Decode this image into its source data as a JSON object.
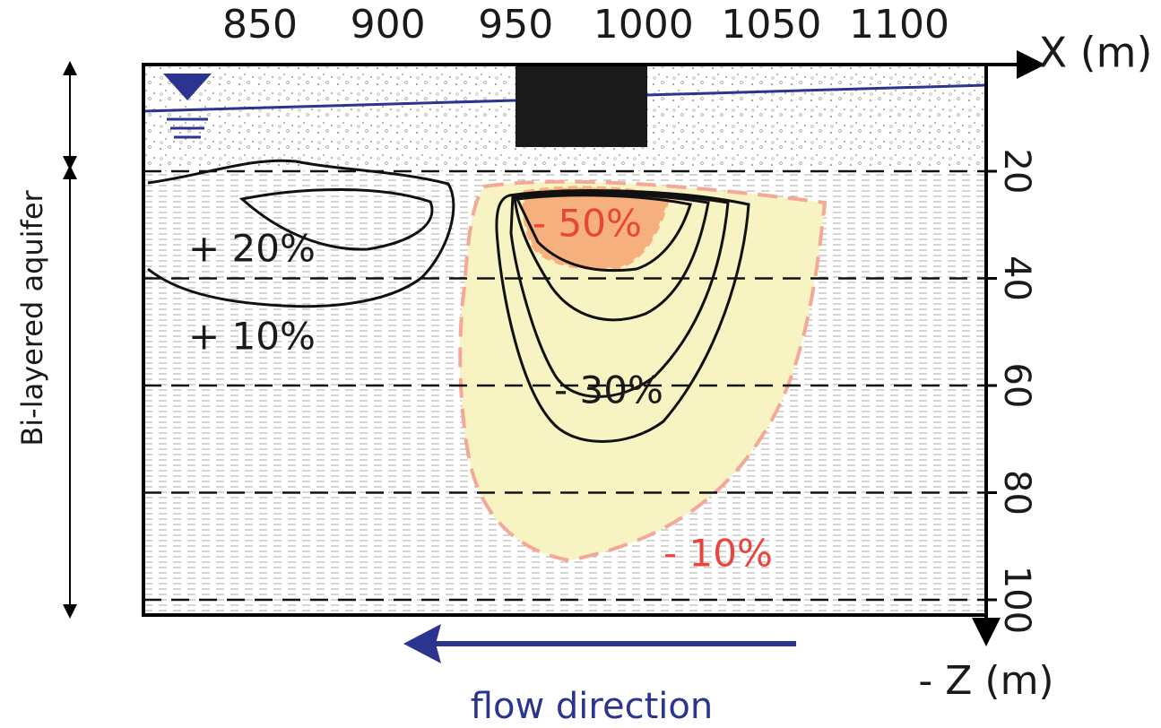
{
  "x_axis": {
    "label": "X (m)",
    "ticks": [
      850,
      900,
      950,
      1000,
      1050,
      1100
    ]
  },
  "z_axis": {
    "label": "- Z (m)",
    "ticks": [
      20,
      40,
      60,
      80,
      100
    ]
  },
  "side_label": "Bi-layered aquifer",
  "flow_label": "flow direction",
  "contour_labels": {
    "plus_20": "+ 20%",
    "plus_10": "+ 10%",
    "minus_50": "- 50%",
    "minus_30": "- 30%",
    "minus_10": "- 10%"
  }
}
